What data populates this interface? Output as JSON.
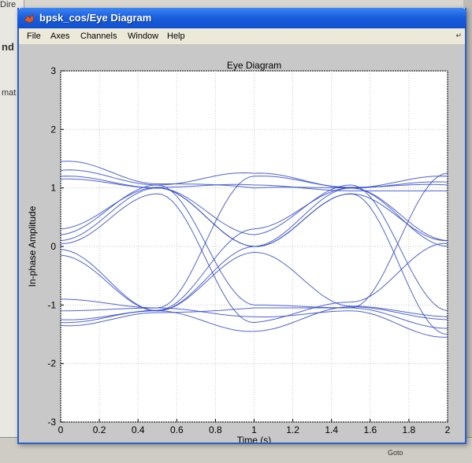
{
  "background": {
    "top_left_text": "Dire",
    "left_labels": [
      "nd",
      "mat"
    ],
    "bottom_right_label": "Goto"
  },
  "window": {
    "title": "bpsk_cos/Eye Diagram",
    "accent_color": "#1b5fdc",
    "controls": [
      "minimize-icon",
      "maximize-icon",
      "close-icon"
    ]
  },
  "menubar": {
    "items": [
      "File",
      "Axes",
      "Channels",
      "Window",
      "Help"
    ]
  },
  "chart_data": {
    "type": "line",
    "title": "Eye Diagram",
    "xlabel": "Time (s)",
    "ylabel": "In-phase Amplitude",
    "xlim": [
      0,
      2
    ],
    "ylim": [
      -3,
      3
    ],
    "x_ticks": [
      "0",
      "0.2",
      "0.4",
      "0.6",
      "0.8",
      "1",
      "1.2",
      "1.4",
      "1.6",
      "1.8",
      "2"
    ],
    "y_ticks": [
      "3",
      "2",
      "1",
      "0",
      "-1",
      "-2",
      "-3"
    ],
    "grid": true,
    "trace_color": "#3048c8",
    "crossing_points": {
      "times": [
        0.5,
        1.5
      ],
      "levels": [
        0.95,
        -1.05
      ]
    },
    "notes": "overlaid raised-cosine BPSK traces sampled at 0.5 s and 1.5 s"
  }
}
